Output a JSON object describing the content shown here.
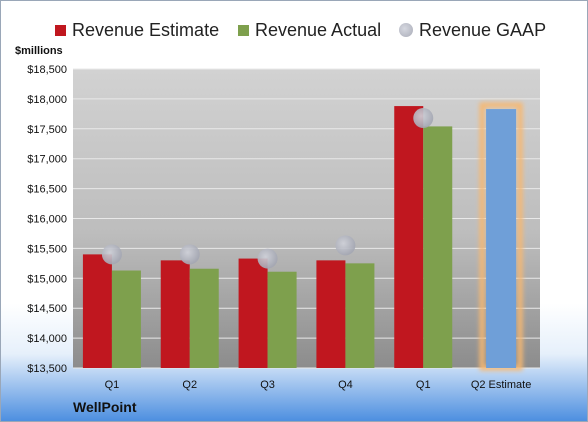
{
  "chart_data": {
    "type": "bar",
    "categories": [
      "Q1",
      "Q2",
      "Q3",
      "Q4",
      "Q1",
      "Q2 Estimate"
    ],
    "series": [
      {
        "name": "Revenue Estimate",
        "color": "#c0171f",
        "values": [
          15400,
          15300,
          15330,
          15300,
          17880,
          null
        ]
      },
      {
        "name": "Revenue Actual",
        "color": "#7ea04d",
        "values": [
          15130,
          15160,
          15110,
          15250,
          17540,
          null
        ]
      },
      {
        "name": "Revenue GAAP",
        "color": "#b2b4be",
        "values": [
          15400,
          15400,
          15330,
          15550,
          17680,
          null
        ]
      }
    ],
    "forecast": {
      "category": "Q2 Estimate",
      "value": 17830,
      "color": "#6f9fd8",
      "glow": "#f7b871"
    },
    "ylabel": "$millions",
    "ylim": [
      13500,
      18500
    ],
    "yticks": [
      "$13,500",
      "$14,000",
      "$14,500",
      "$15,000",
      "$15,500",
      "$16,000",
      "$16,500",
      "$17,000",
      "$17,500",
      "$18,000",
      "$18,500"
    ],
    "grid": true,
    "legend": "top"
  },
  "company": "WellPoint"
}
